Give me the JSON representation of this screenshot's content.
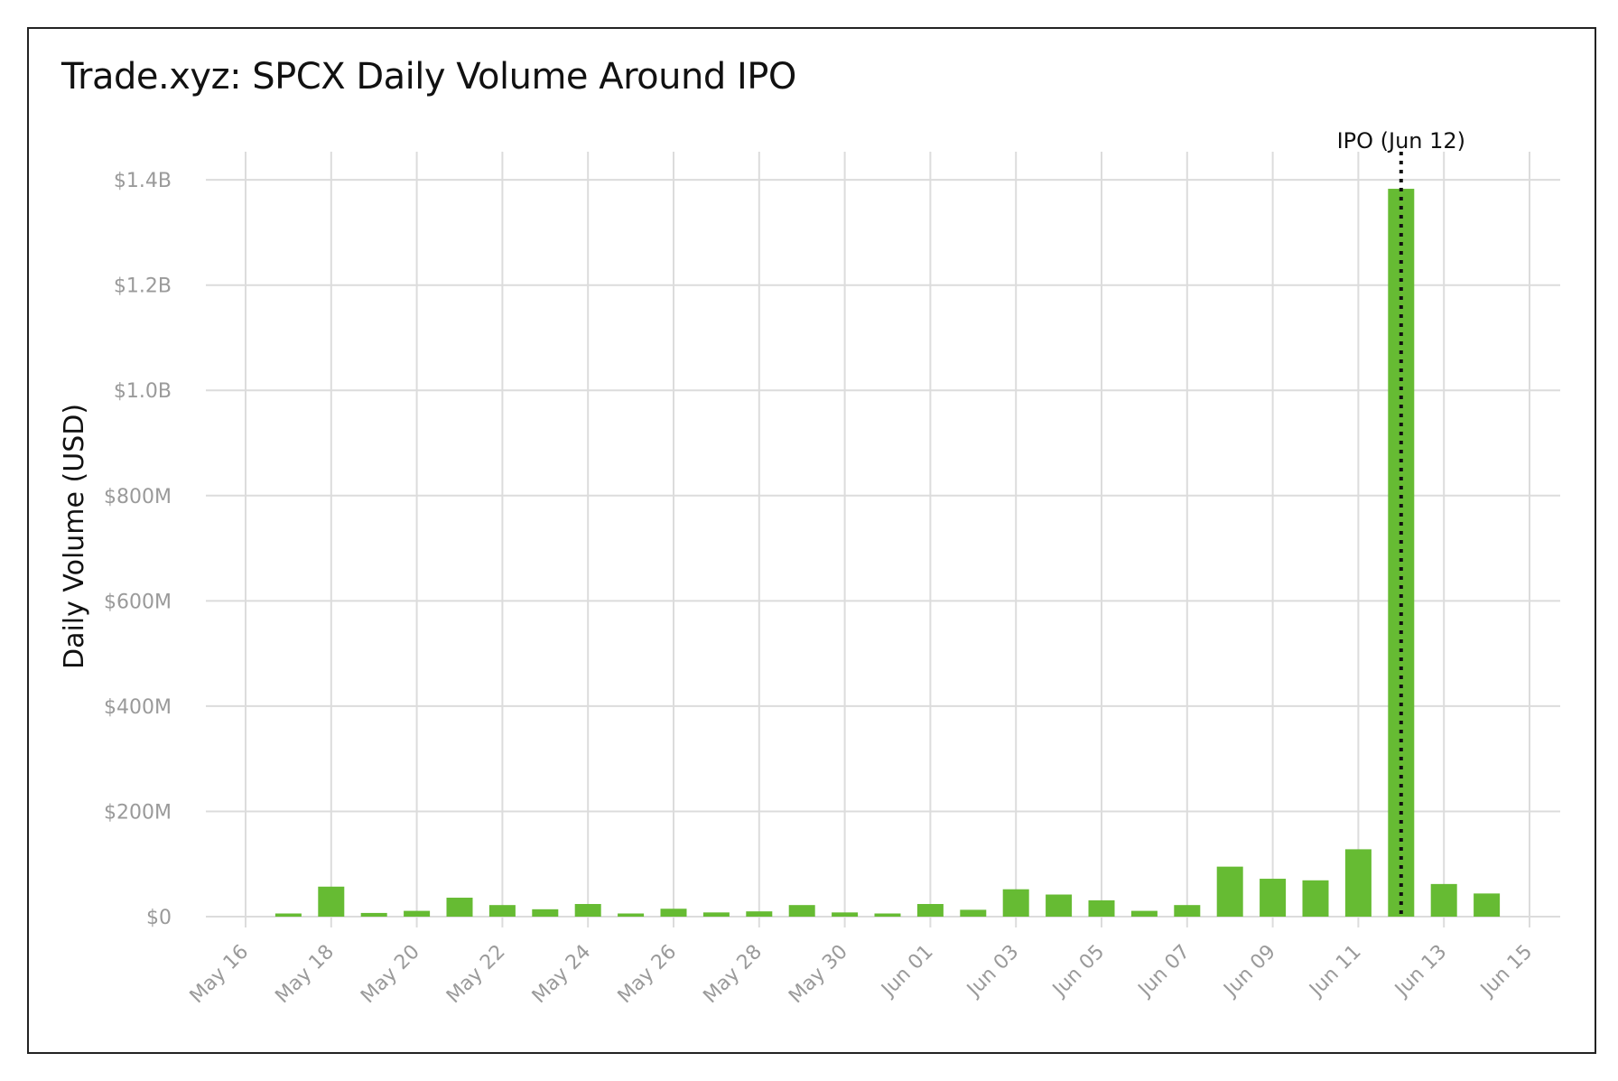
{
  "chart_data": {
    "type": "bar",
    "title": "Trade.xyz: SPCX Daily Volume Around IPO",
    "ylabel": "Daily Volume (USD)",
    "xlabel": "",
    "ylim": [
      0,
      1450000000
    ],
    "xlim": [
      "2026-05-16",
      "2026-06-15"
    ],
    "grid": true,
    "bar_color": "#66bb33",
    "y_ticks": [
      {
        "value": 0,
        "label": "$0"
      },
      {
        "value": 200000000,
        "label": "$200M"
      },
      {
        "value": 400000000,
        "label": "$400M"
      },
      {
        "value": 600000000,
        "label": "$600M"
      },
      {
        "value": 800000000,
        "label": "$800M"
      },
      {
        "value": 1000000000,
        "label": "$1.0B"
      },
      {
        "value": 1200000000,
        "label": "$1.2B"
      },
      {
        "value": 1400000000,
        "label": "$1.4B"
      }
    ],
    "x_ticks": [
      {
        "date": "2026-05-16",
        "label": "May 16"
      },
      {
        "date": "2026-05-18",
        "label": "May 18"
      },
      {
        "date": "2026-05-20",
        "label": "May 20"
      },
      {
        "date": "2026-05-22",
        "label": "May 22"
      },
      {
        "date": "2026-05-24",
        "label": "May 24"
      },
      {
        "date": "2026-05-26",
        "label": "May 26"
      },
      {
        "date": "2026-05-28",
        "label": "May 28"
      },
      {
        "date": "2026-05-30",
        "label": "May 30"
      },
      {
        "date": "2026-06-01",
        "label": "Jun 01"
      },
      {
        "date": "2026-06-03",
        "label": "Jun 03"
      },
      {
        "date": "2026-06-05",
        "label": "Jun 05"
      },
      {
        "date": "2026-06-07",
        "label": "Jun 07"
      },
      {
        "date": "2026-06-09",
        "label": "Jun 09"
      },
      {
        "date": "2026-06-11",
        "label": "Jun 11"
      },
      {
        "date": "2026-06-13",
        "label": "Jun 13"
      },
      {
        "date": "2026-06-15",
        "label": "Jun 15"
      }
    ],
    "x": [
      "2026-05-17",
      "2026-05-18",
      "2026-05-19",
      "2026-05-20",
      "2026-05-21",
      "2026-05-22",
      "2026-05-23",
      "2026-05-24",
      "2026-05-25",
      "2026-05-26",
      "2026-05-27",
      "2026-05-28",
      "2026-05-29",
      "2026-05-30",
      "2026-05-31",
      "2026-06-01",
      "2026-06-02",
      "2026-06-03",
      "2026-06-04",
      "2026-06-05",
      "2026-06-06",
      "2026-06-07",
      "2026-06-08",
      "2026-06-09",
      "2026-06-10",
      "2026-06-11",
      "2026-06-12",
      "2026-06-13",
      "2026-06-14"
    ],
    "values": [
      6000000,
      57000000,
      7000000,
      11000000,
      36000000,
      22000000,
      14000000,
      24000000,
      6000000,
      15000000,
      8000000,
      10000000,
      22000000,
      8000000,
      6000000,
      24000000,
      13000000,
      52000000,
      42000000,
      31000000,
      11000000,
      22000000,
      95000000,
      72000000,
      69000000,
      128000000,
      1383000000,
      62000000,
      44000000
    ],
    "annotation": {
      "date": "2026-06-12",
      "label": "IPO (Jun 12)",
      "style": "dotted-vertical-line"
    }
  }
}
